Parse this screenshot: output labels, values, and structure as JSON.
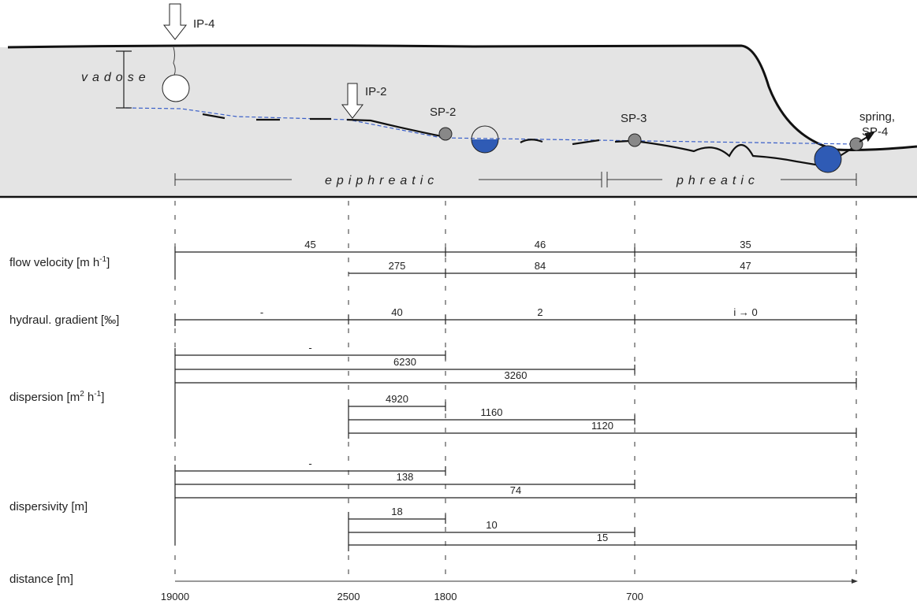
{
  "profile": {
    "ip4": "IP-4",
    "vadose": "vadose",
    "ip2": "IP-2",
    "sp2": "SP-2",
    "sp3": "SP-3",
    "spring": "spring,",
    "sp4": "SP-4",
    "epiphreatic": "epiphreatic",
    "phreatic": "phreatic"
  },
  "rows": [
    {
      "label_parts": [
        "flow velocity [m h",
        "-1",
        "]"
      ],
      "segments": [
        45,
        46,
        35,
        275,
        84,
        47
      ]
    },
    {
      "label_parts": [
        "hydraul. gradient [‰]"
      ],
      "segments": [
        "-",
        40,
        2,
        "i → 0"
      ]
    },
    {
      "label_parts": [
        "dispersion [m",
        "2",
        " h",
        "-1",
        "]"
      ],
      "segments": [
        "-",
        6230,
        3260,
        4920,
        1160,
        1120
      ]
    },
    {
      "label_parts": [
        "dispersivity [m]"
      ],
      "segments": [
        "-",
        138,
        74,
        18,
        10,
        15
      ]
    }
  ],
  "distance": {
    "label": "distance [m]",
    "ticks": [
      19000,
      2500,
      1800,
      700
    ]
  }
}
